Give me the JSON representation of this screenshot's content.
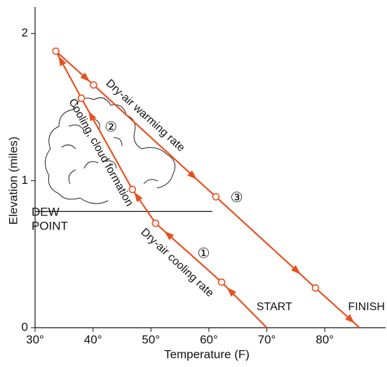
{
  "chart_data": {
    "type": "line",
    "xlabel": "Temperature (F)",
    "ylabel": "Elevation (miles)",
    "xlim": [
      30,
      90.5
    ],
    "ylim": [
      0,
      2.18
    ],
    "xticks": [
      {
        "value": 30,
        "label": "30°"
      },
      {
        "value": 40,
        "label": "40°"
      },
      {
        "value": 50,
        "label": "50°"
      },
      {
        "value": 60,
        "label": "60°"
      },
      {
        "value": 70,
        "label": "70°"
      },
      {
        "value": 80,
        "label": "80°"
      }
    ],
    "yticks": [
      0,
      1,
      2
    ],
    "series": [
      {
        "color": "#e8501e",
        "x": [
          70,
          62.2,
          50.8,
          46.8,
          38.0,
          33.6,
          40.1,
          61.2,
          78.4,
          86
        ],
        "values": [
          0,
          0.31,
          0.71,
          0.94,
          1.56,
          1.88,
          1.65,
          0.89,
          0.27,
          0
        ]
      }
    ],
    "dew_point": {
      "label": [
        "DEW",
        "POINT"
      ],
      "y": 0.79,
      "x_end": 60.6
    },
    "annotations": [
      {
        "text": "Dry-air cooling rate",
        "x": 54.5,
        "y": 0.44,
        "angle": 43
      },
      {
        "text": "Cooling, cloud formation",
        "x": 41.3,
        "y": 1.19,
        "angle": 61
      },
      {
        "text": "Dry-air warming rate",
        "x": 49,
        "y": 1.44,
        "angle": 42
      },
      {
        "text": "①",
        "x": 59.1,
        "y": 0.5,
        "angle": 0
      },
      {
        "text": "②",
        "x": 43.1,
        "y": 1.36,
        "angle": 0
      },
      {
        "text": "③",
        "x": 64.8,
        "y": 0.88,
        "angle": 0
      },
      {
        "text": "START",
        "x": 71.3,
        "y": 0.14,
        "angle": 0
      },
      {
        "text": "FINISH",
        "x": 87.2,
        "y": 0.14,
        "angle": 0
      }
    ]
  }
}
